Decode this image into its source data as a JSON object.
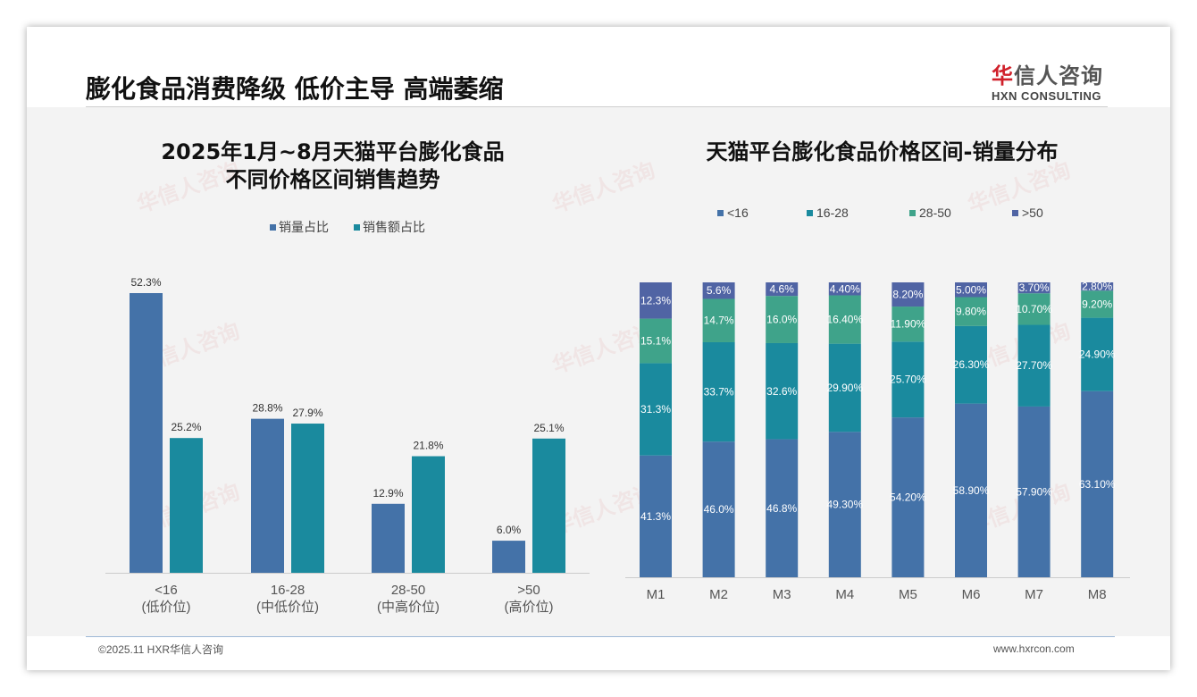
{
  "header": {
    "title": "膨化食品消费降级 低价主导 高端萎缩"
  },
  "logo": {
    "cn_red": "华",
    "cn_rest": "信人咨询",
    "en": "HXN CONSULTING"
  },
  "watermark": "华信人咨询",
  "footer": {
    "copyright": "©2025.11 HXR华信人咨询",
    "website": "www.hxrcon.com"
  },
  "colors": {
    "blue": "#4472a8",
    "teal": "#1a8a9e",
    "green": "#3fa38a",
    "purple": "#5064a4"
  },
  "chart_data": [
    {
      "type": "bar",
      "title_line1": "2025年1月~8月天猫平台膨化食品",
      "title_line2": "不同价格区间销售趋势",
      "categories": [
        "<16",
        "16-28",
        "28-50",
        ">50"
      ],
      "category_sublabels": [
        "(低价位)",
        "(中低价位)",
        "(中高价位)",
        "(高价位)"
      ],
      "series": [
        {
          "name": "销量占比",
          "values": [
            52.3,
            28.8,
            12.9,
            6.0
          ],
          "labels": [
            "52.3%",
            "28.8%",
            "12.9%",
            "6.0%"
          ]
        },
        {
          "name": "销售额占比",
          "values": [
            25.2,
            27.9,
            21.8,
            25.1
          ],
          "labels": [
            "25.2%",
            "27.9%",
            "21.8%",
            "25.1%"
          ]
        }
      ],
      "legend": "top",
      "ylim": [
        0,
        55
      ]
    },
    {
      "type": "bar",
      "stacked": true,
      "title": "天猫平台膨化食品价格区间-销量分布",
      "categories": [
        "M1",
        "M2",
        "M3",
        "M4",
        "M5",
        "M6",
        "M7",
        "M8"
      ],
      "series": [
        {
          "name": "<16",
          "values": [
            41.3,
            46.0,
            46.8,
            49.3,
            54.2,
            58.9,
            57.9,
            63.1
          ],
          "labels": [
            "41.3%",
            "46.0%",
            "46.8%",
            "49.30%",
            "54.20%",
            "58.90%",
            "57.90%",
            "63.10%"
          ]
        },
        {
          "name": "16-28",
          "values": [
            31.3,
            33.7,
            32.6,
            29.9,
            25.7,
            26.3,
            27.7,
            24.9
          ],
          "labels": [
            "31.3%",
            "33.7%",
            "32.6%",
            "29.90%",
            "25.70%",
            "26.30%",
            "27.70%",
            "24.90%"
          ]
        },
        {
          "name": "28-50",
          "values": [
            15.1,
            14.7,
            16.0,
            16.4,
            11.9,
            9.8,
            10.7,
            9.2
          ],
          "labels": [
            "15.1%",
            "14.7%",
            "16.0%",
            "16.40%",
            "11.90%",
            "9.80%",
            "10.70%",
            "9.20%"
          ]
        },
        {
          "name": ">50",
          "values": [
            12.3,
            5.6,
            4.6,
            4.4,
            8.2,
            5.0,
            3.7,
            2.8
          ],
          "labels": [
            "12.3%",
            "5.6%",
            "4.6%",
            "4.40%",
            "8.20%",
            "5.00%",
            "3.70%",
            "2.80%"
          ]
        }
      ],
      "legend": "top",
      "ylim": [
        0,
        100
      ]
    }
  ]
}
